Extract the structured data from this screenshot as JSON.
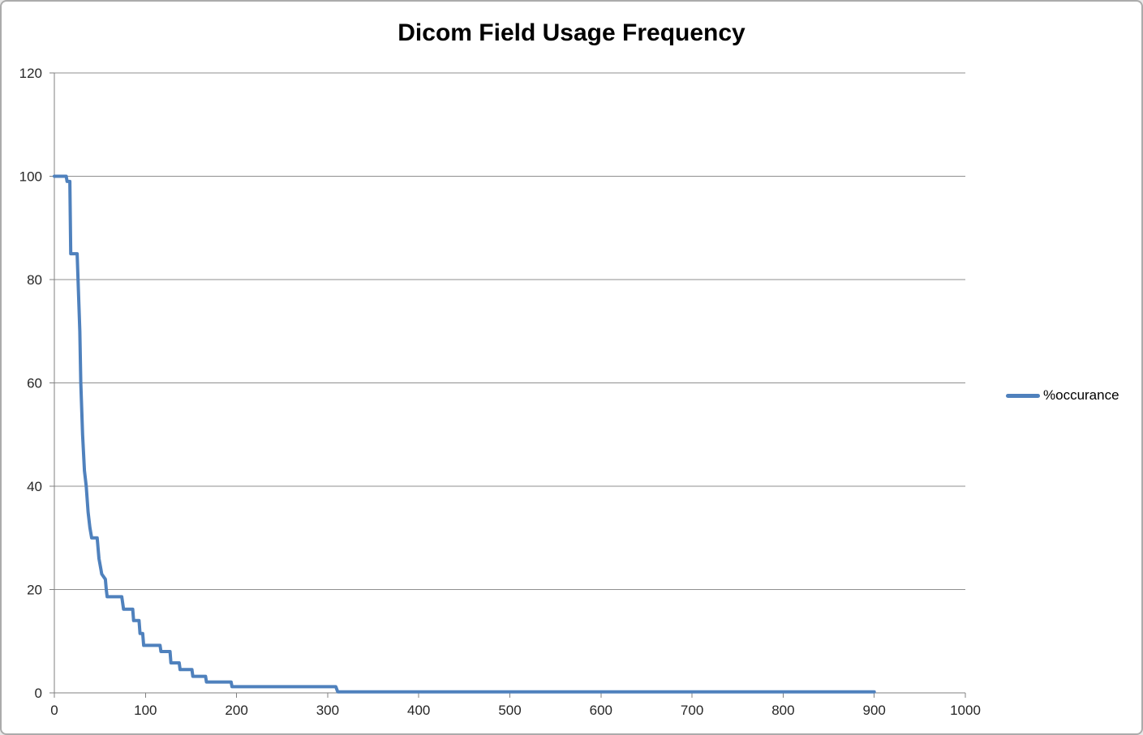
{
  "window": {
    "background_color": "#ffffff",
    "border_color": "#ababab"
  },
  "chart_data": {
    "type": "line",
    "title": "Dicom Field Usage Frequency",
    "xlabel": "",
    "ylabel": "",
    "xlim": [
      0,
      1000
    ],
    "ylim": [
      0,
      120
    ],
    "xticks": [
      0,
      100,
      200,
      300,
      400,
      500,
      600,
      700,
      800,
      900,
      1000
    ],
    "yticks": [
      0,
      20,
      40,
      60,
      80,
      100,
      120
    ],
    "grid": "horizontal",
    "gridline_color": "#8f8f8f",
    "axis_color": "#808080",
    "tick_label_color": "#262626",
    "legend_position": "right",
    "series": [
      {
        "name": "%occurance",
        "color": "#4F81BD",
        "points": [
          [
            0,
            100
          ],
          [
            13,
            100
          ],
          [
            14,
            99
          ],
          [
            17,
            99
          ],
          [
            18,
            85
          ],
          [
            25,
            85
          ],
          [
            26,
            80
          ],
          [
            28,
            70
          ],
          [
            29,
            60
          ],
          [
            31,
            50
          ],
          [
            33,
            43
          ],
          [
            35,
            40
          ],
          [
            37,
            35
          ],
          [
            39,
            32
          ],
          [
            41,
            30
          ],
          [
            47,
            30
          ],
          [
            49,
            26
          ],
          [
            51,
            24
          ],
          [
            52,
            23
          ],
          [
            56,
            22
          ],
          [
            57,
            20
          ],
          [
            58,
            18.6
          ],
          [
            74,
            18.6
          ],
          [
            76,
            16.2
          ],
          [
            86,
            16.2
          ],
          [
            87,
            14
          ],
          [
            93,
            14
          ],
          [
            94,
            11.5
          ],
          [
            97,
            11.5
          ],
          [
            98,
            9.2
          ],
          [
            116,
            9.2
          ],
          [
            117,
            8
          ],
          [
            127,
            8
          ],
          [
            128,
            5.8
          ],
          [
            137,
            5.8
          ],
          [
            138,
            4.5
          ],
          [
            151,
            4.5
          ],
          [
            152,
            3.2
          ],
          [
            166,
            3.2
          ],
          [
            167,
            2.1
          ],
          [
            194,
            2.1
          ],
          [
            195,
            1.2
          ],
          [
            309,
            1.2
          ],
          [
            311,
            0.2
          ],
          [
            900,
            0.2
          ]
        ]
      }
    ]
  },
  "legend": {
    "label": "%occurance"
  }
}
